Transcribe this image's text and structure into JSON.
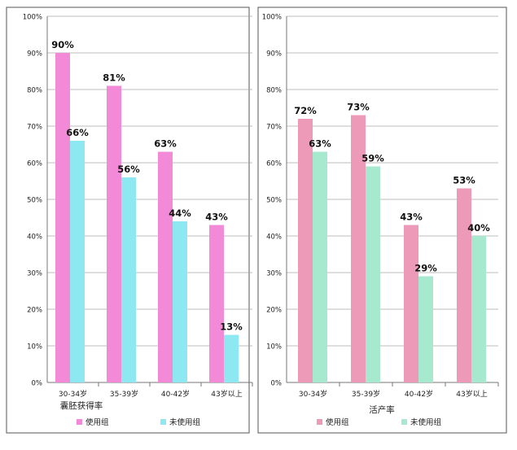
{
  "chart_data": [
    {
      "type": "bar",
      "title": "",
      "xlabel": "囊胚获得率",
      "ylabel": "",
      "categories": [
        "30-34岁",
        "35-39岁",
        "40-42岁",
        "43岁以上"
      ],
      "series": [
        {
          "name": "使用组",
          "values": [
            90,
            81,
            63,
            43
          ],
          "color": "#f28ad8"
        },
        {
          "name": "未使用组",
          "values": [
            66,
            56,
            44,
            13
          ],
          "color": "#8de8f2"
        }
      ],
      "data_labels": [
        [
          "90%",
          "81%",
          "63%",
          "43%"
        ],
        [
          "66%",
          "56%",
          "44%",
          "13%"
        ]
      ],
      "ylim": [
        0,
        100
      ],
      "yticks": [
        "0%",
        "10%",
        "20%",
        "30%",
        "40%",
        "50%",
        "60%",
        "70%",
        "80%",
        "90%",
        "100%"
      ],
      "grid": true,
      "legend": "bottom"
    },
    {
      "type": "bar",
      "title": "",
      "xlabel": "活产率",
      "ylabel": "",
      "categories": [
        "30-34岁",
        "35-39岁",
        "40-42岁",
        "43岁以上"
      ],
      "series": [
        {
          "name": "使用组",
          "values": [
            72,
            73,
            43,
            53
          ],
          "color": "#ec9ab8"
        },
        {
          "name": "未使用组",
          "values": [
            63,
            59,
            29,
            40
          ],
          "color": "#a6e9cf"
        }
      ],
      "data_labels": [
        [
          "72%",
          "73%",
          "43%",
          "53%"
        ],
        [
          "63%",
          "59%",
          "29%",
          "40%"
        ]
      ],
      "ylim": [
        0,
        100
      ],
      "yticks": [
        "0%",
        "10%",
        "20%",
        "30%",
        "40%",
        "50%",
        "60%",
        "70%",
        "80%",
        "90%",
        "100%"
      ],
      "grid": true,
      "legend": "bottom"
    }
  ]
}
